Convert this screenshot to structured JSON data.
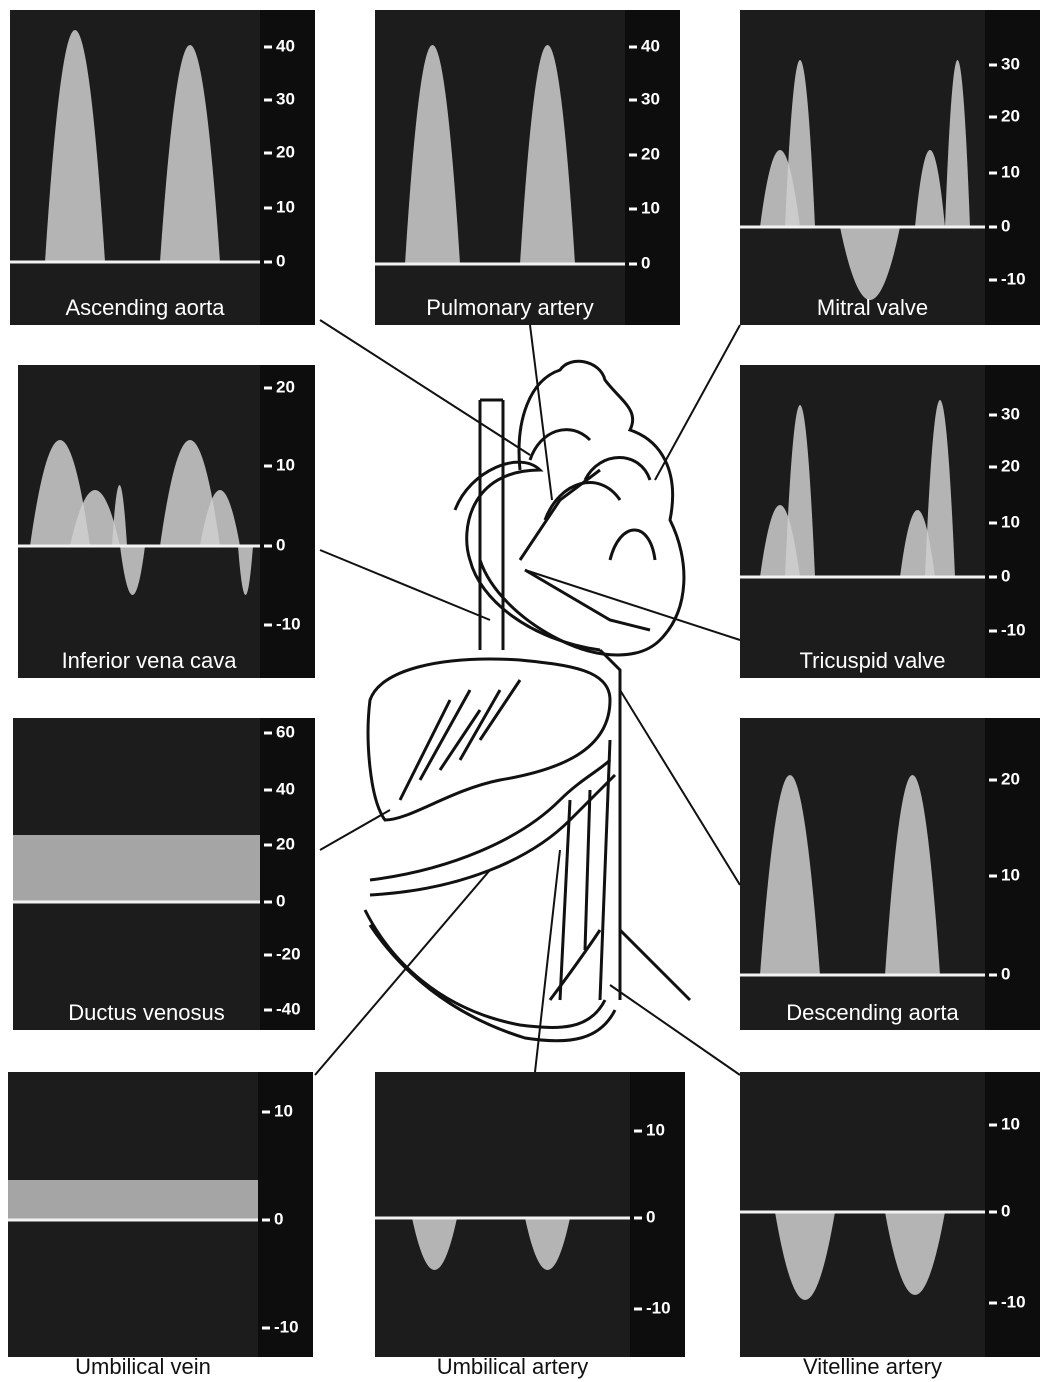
{
  "panels": [
    {
      "label": "Ascending aorta",
      "ticks": [
        40,
        30,
        20,
        10,
        0
      ]
    },
    {
      "label": "Pulmonary artery",
      "ticks": [
        40,
        30,
        20,
        10,
        0
      ]
    },
    {
      "label": "Mitral valve",
      "ticks": [
        30,
        20,
        10,
        0,
        -10
      ]
    },
    {
      "label": "Inferior vena cava",
      "ticks": [
        20,
        10,
        0,
        -10
      ]
    },
    {
      "label": "Tricuspid valve",
      "ticks": [
        30,
        20,
        10,
        0,
        -10
      ]
    },
    {
      "label": "Ductus venosus",
      "ticks": [
        60,
        40,
        20,
        0,
        -20,
        -40
      ]
    },
    {
      "label": "Descending aorta",
      "ticks": [
        20,
        10,
        0
      ]
    },
    {
      "label": "Umbilical vein",
      "ticks": [
        10,
        0,
        -10
      ]
    },
    {
      "label": "Umbilical artery",
      "ticks": [
        10,
        0,
        -10
      ]
    },
    {
      "label": "Vitelline artery",
      "ticks": [
        10,
        0,
        -10
      ]
    }
  ]
}
